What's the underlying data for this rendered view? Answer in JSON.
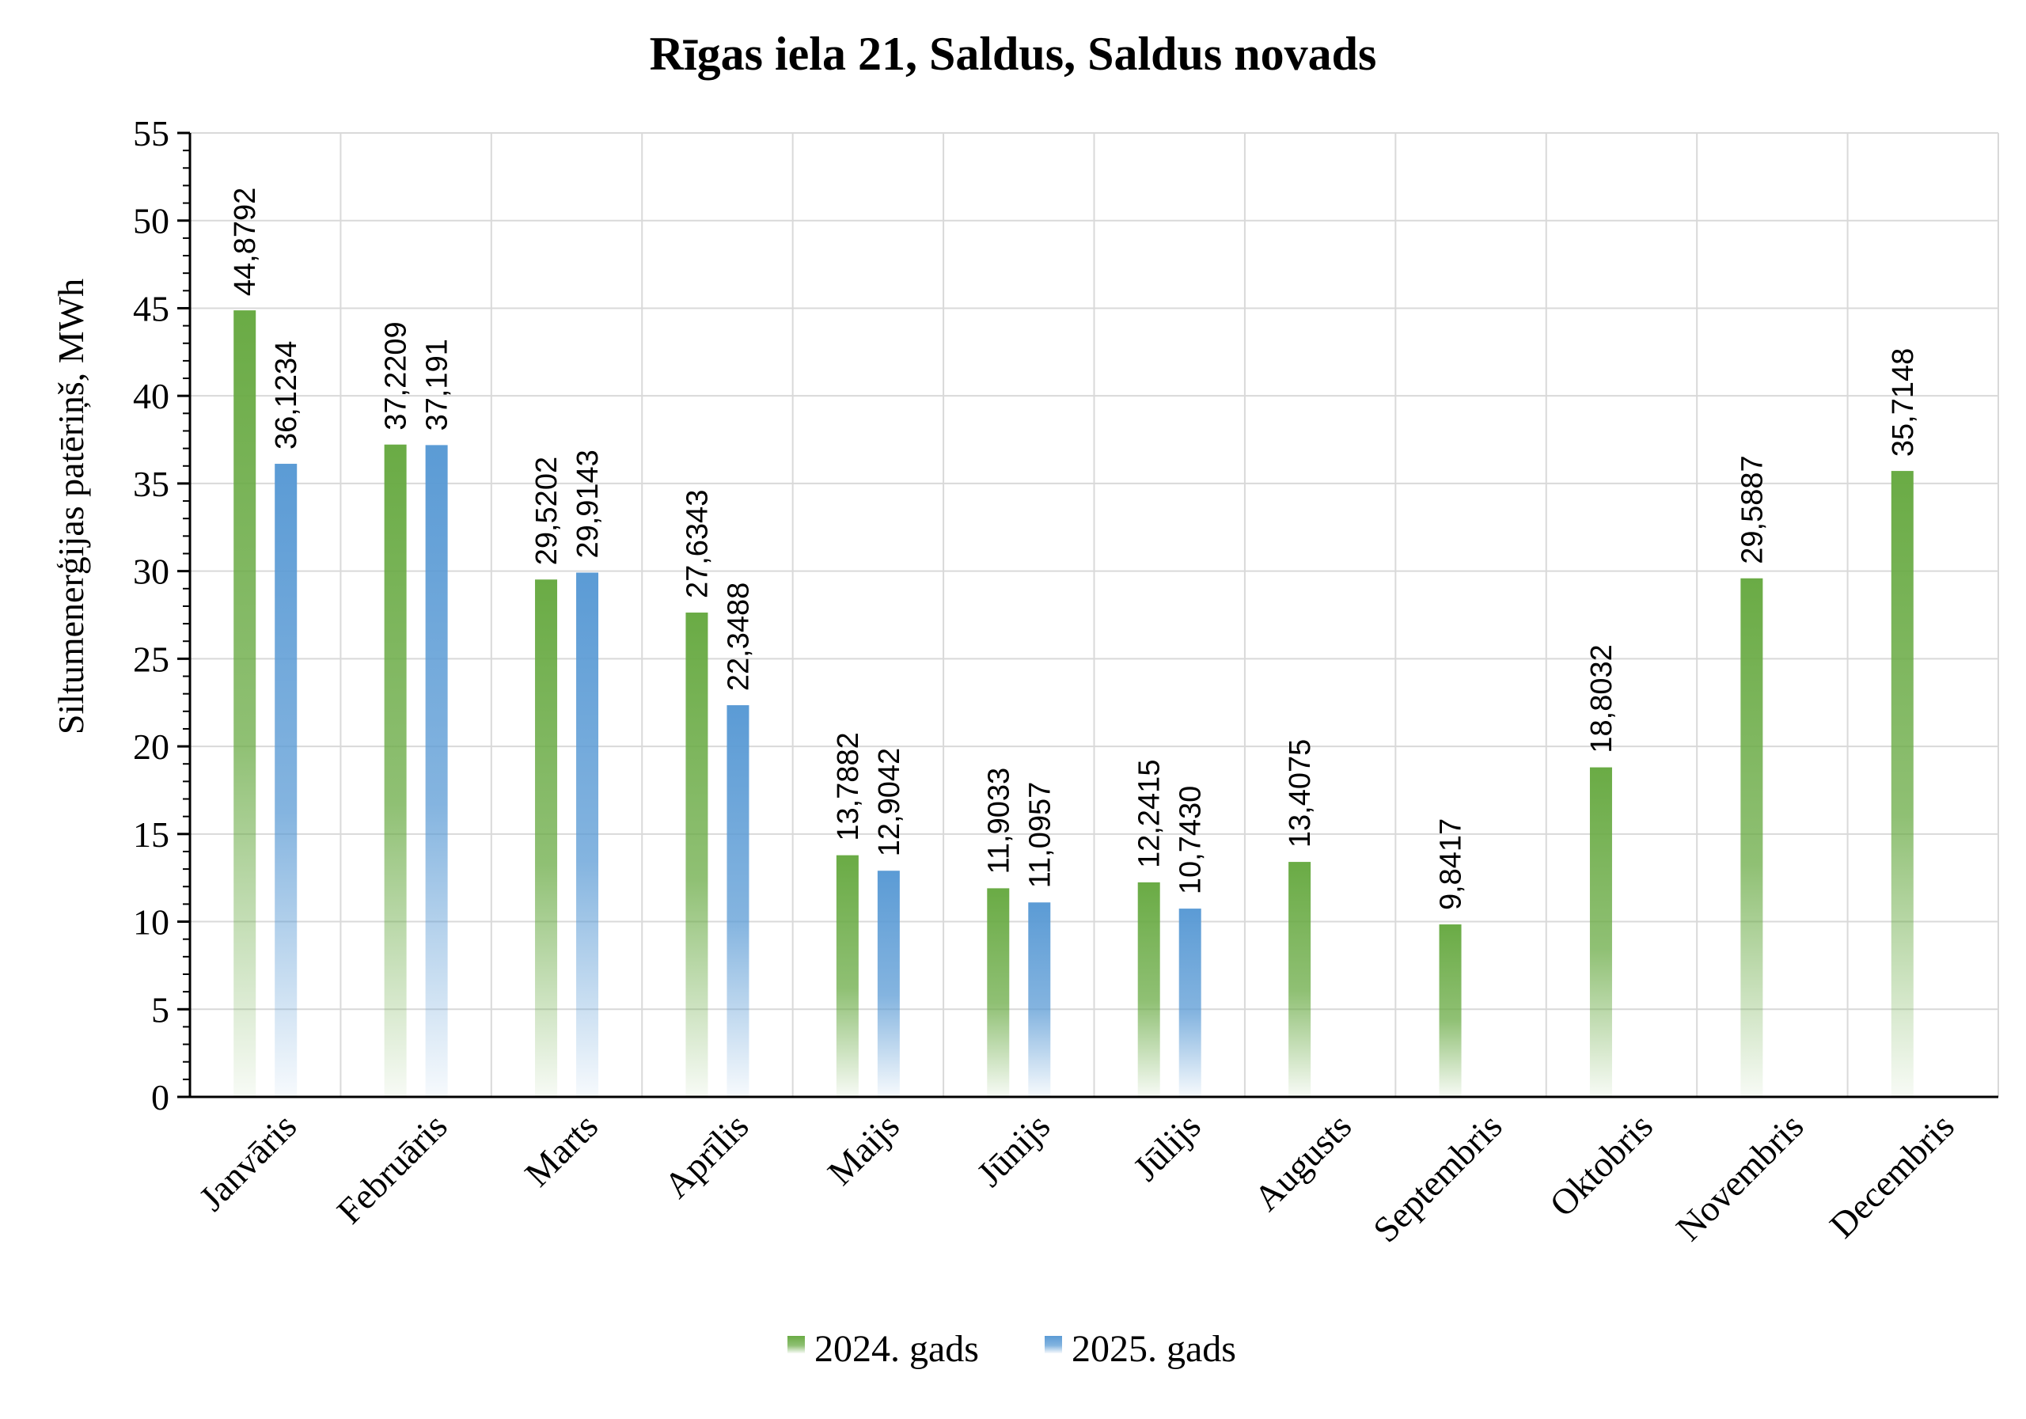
{
  "chart_data": {
    "type": "bar",
    "title": "Rīgas iela 21, Saldus, Saldus novads",
    "ylabel": "Siltumenerģijas patēriņš, MWh",
    "xlabel": "",
    "ylim": [
      0,
      55
    ],
    "ytick_step": 5,
    "grid": true,
    "legend_position": "bottom",
    "categories": [
      "Janvāris",
      "Februāris",
      "Marts",
      "Aprīlis",
      "Maijs",
      "Jūnijs",
      "Jūlijs",
      "Augusts",
      "Septembris",
      "Oktobris",
      "Novembris",
      "Decembris"
    ],
    "series": [
      {
        "name": "2024. gads",
        "color": "#6AAB45",
        "values": [
          44.8792,
          37.2209,
          29.5202,
          27.6343,
          13.7882,
          11.9033,
          12.2415,
          13.4075,
          9.8417,
          18.8032,
          29.5887,
          35.7148
        ],
        "labels": [
          "44,8792",
          "37,2209",
          "29,5202",
          "27,6343",
          "13,7882",
          "11,9033",
          "12,2415",
          "13,4075",
          "9,8417",
          "18,8032",
          "29,5887",
          "35,7148"
        ]
      },
      {
        "name": "2025. gads",
        "color": "#5B9BD5",
        "values": [
          36.1234,
          37.191,
          29.9143,
          22.3488,
          12.9042,
          11.0957,
          10.743,
          null,
          null,
          null,
          null,
          null
        ],
        "labels": [
          "36,1234",
          "37,191",
          "29,9143",
          "22,3488",
          "12,9042",
          "11,0957",
          "10,7430",
          null,
          null,
          null,
          null,
          null
        ]
      }
    ]
  }
}
